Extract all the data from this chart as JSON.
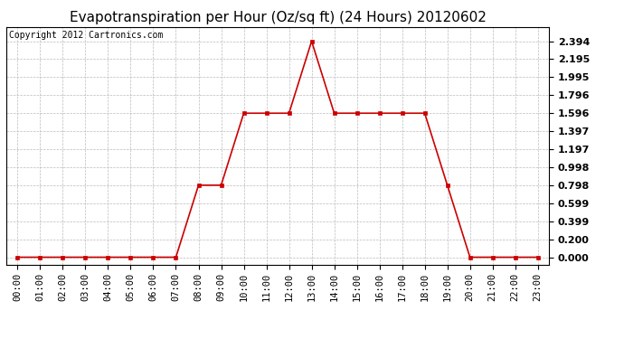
{
  "title": "Evapotranspiration per Hour (Oz/sq ft) (24 Hours) 20120602",
  "copyright": "Copyright 2012 Cartronics.com",
  "x_labels": [
    "00:00",
    "01:00",
    "02:00",
    "03:00",
    "04:00",
    "05:00",
    "06:00",
    "07:00",
    "08:00",
    "09:00",
    "10:00",
    "11:00",
    "12:00",
    "13:00",
    "14:00",
    "15:00",
    "16:00",
    "17:00",
    "18:00",
    "19:00",
    "20:00",
    "21:00",
    "22:00",
    "23:00"
  ],
  "y_values": [
    0.0,
    0.0,
    0.0,
    0.0,
    0.0,
    0.0,
    0.0,
    0.0,
    0.798,
    0.798,
    1.596,
    1.596,
    1.596,
    2.394,
    1.596,
    1.596,
    1.596,
    1.596,
    1.596,
    0.798,
    0.0,
    0.0,
    0.0,
    0.0
  ],
  "y_ticks": [
    0.0,
    0.2,
    0.399,
    0.599,
    0.798,
    0.998,
    1.197,
    1.397,
    1.596,
    1.796,
    1.995,
    2.195,
    2.394
  ],
  "line_color": "#cc0000",
  "marker_color": "#cc0000",
  "bg_color": "#ffffff",
  "plot_bg_color": "#ffffff",
  "grid_color": "#bbbbbb",
  "title_fontsize": 11,
  "copyright_fontsize": 7,
  "ytick_fontsize": 8,
  "xtick_fontsize": 7.5,
  "ylim_min": -0.08,
  "ylim_max": 2.55
}
